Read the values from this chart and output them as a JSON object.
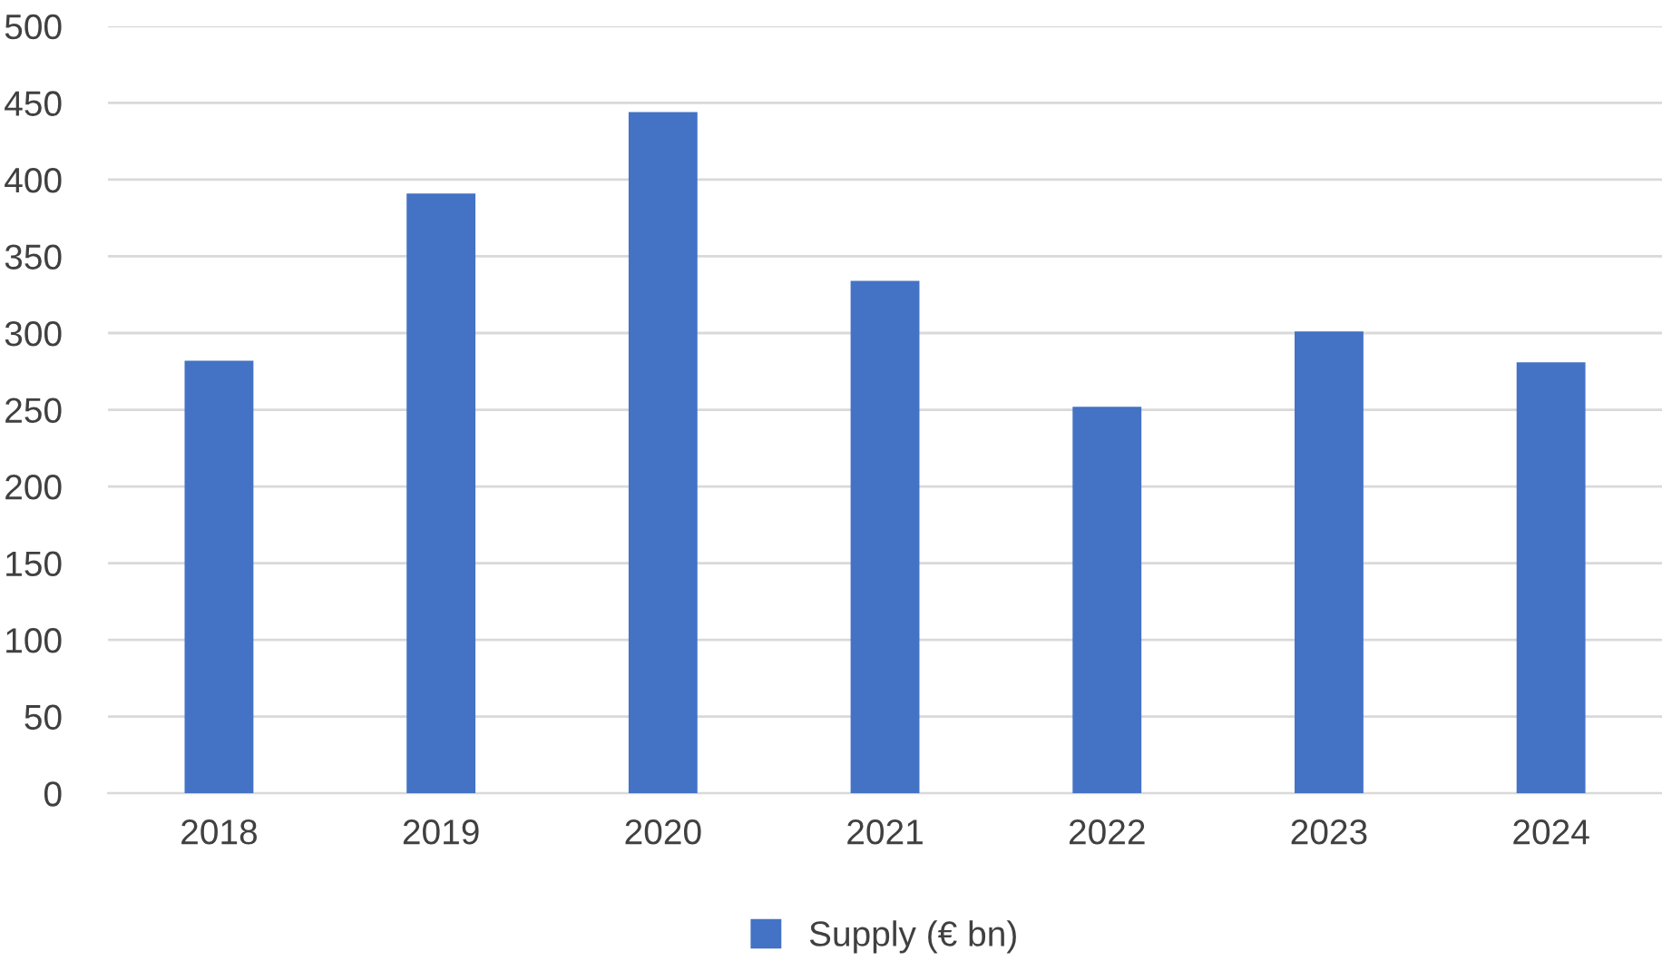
{
  "chart_data": {
    "type": "bar",
    "categories": [
      "2018",
      "2019",
      "2020",
      "2021",
      "2022",
      "2023",
      "2024"
    ],
    "series": [
      {
        "name": "Supply (€ bn)",
        "color": "#4472c4",
        "values": [
          282,
          391,
          444,
          334,
          252,
          301,
          281
        ]
      }
    ],
    "ylim": [
      0,
      500
    ],
    "yticks": [
      0,
      50,
      100,
      150,
      200,
      250,
      300,
      350,
      400,
      450,
      500
    ],
    "grid": "y",
    "legend": "bottom"
  }
}
